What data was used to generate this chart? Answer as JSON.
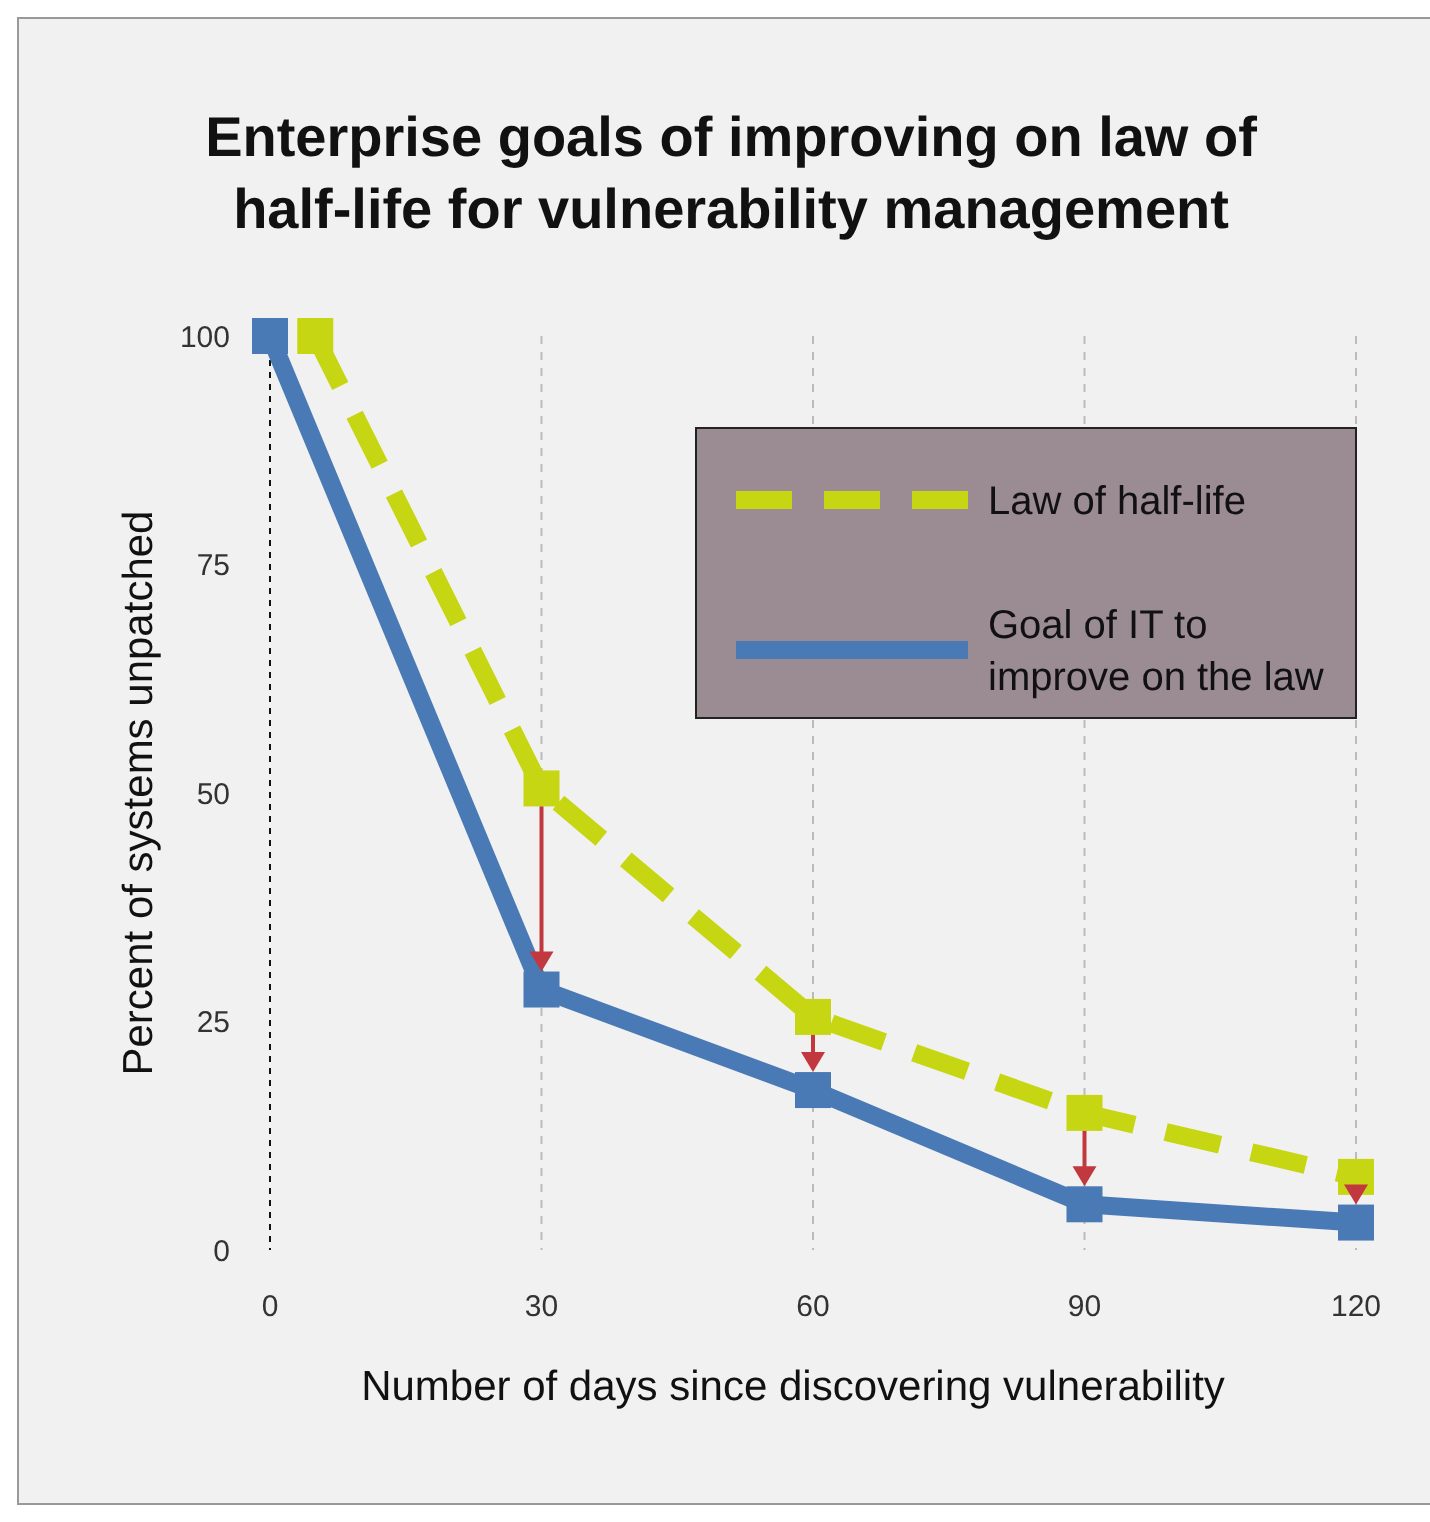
{
  "chart_data": {
    "type": "line",
    "title": "Enterprise goals of improving on law of half-life for vulnerability management",
    "xlabel": "Number of days since discovering vulnerability",
    "ylabel": "Percent of systems unpatched",
    "xlim": [
      0,
      120
    ],
    "xticks": [
      0,
      30,
      60,
      90,
      120
    ],
    "ylim": [
      0,
      100
    ],
    "yticks": [
      0,
      25,
      50,
      75,
      100
    ],
    "grid": "x",
    "legend": "top right",
    "marker": "square",
    "series": [
      {
        "name": "Law of half-life",
        "color": "#c6d613",
        "line_style": "dashed",
        "x": [
          5,
          30,
          60,
          90,
          120
        ],
        "values": [
          100,
          50.5,
          25.5,
          15,
          8
        ]
      },
      {
        "name": "Goal of IT to improve on the law",
        "color": "#4a7ab5",
        "line_style": "solid",
        "x": [
          0,
          30,
          60,
          90,
          120
        ],
        "values": [
          100,
          28.5,
          17.5,
          5,
          3
        ]
      }
    ]
  }
}
